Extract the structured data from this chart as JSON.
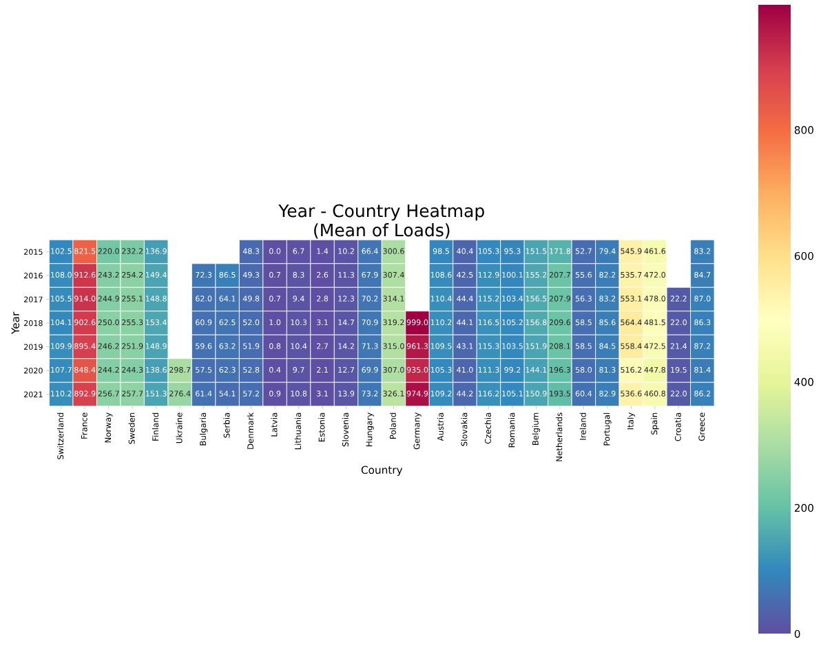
{
  "chart_data": {
    "type": "heatmap",
    "title": "Year - Country Heatmap\n(Mean of Loads)",
    "xlabel": "Country",
    "ylabel": "Year",
    "categories": [
      "Switzerland",
      "France",
      "Norway",
      "Sweden",
      "Finland",
      "Ukraine",
      "Bulgaria",
      "Serbia",
      "Denmark",
      "Latvia",
      "Lithuania",
      "Estonia",
      "Slovenia",
      "Hungary",
      "Poland",
      "Germany",
      "Austria",
      "Slovakia",
      "Czechia",
      "Romania",
      "Belgium",
      "Netherlands",
      "Ireland",
      "Portugal",
      "Italy",
      "Spain",
      "Croatia",
      "Greece"
    ],
    "y_categories": [
      "2015",
      "2016",
      "2017",
      "2018",
      "2019",
      "2020",
      "2021"
    ],
    "cells": [
      [
        102.5,
        821.5,
        220.0,
        232.2,
        136.9,
        null,
        null,
        null,
        48.3,
        0.0,
        6.7,
        1.4,
        10.2,
        66.4,
        300.6,
        null,
        98.5,
        40.4,
        105.3,
        95.3,
        151.5,
        171.8,
        52.7,
        79.4,
        545.9,
        461.6,
        null,
        83.2
      ],
      [
        108.0,
        912.6,
        243.2,
        254.2,
        149.4,
        null,
        72.3,
        86.5,
        49.3,
        0.7,
        8.3,
        2.6,
        11.3,
        67.9,
        307.4,
        null,
        108.6,
        42.5,
        112.9,
        100.1,
        155.2,
        207.7,
        55.6,
        82.2,
        535.7,
        472.0,
        null,
        84.7
      ],
      [
        105.5,
        914.0,
        244.9,
        255.1,
        148.8,
        null,
        62.0,
        64.1,
        49.8,
        0.7,
        9.4,
        2.8,
        12.3,
        70.2,
        314.1,
        null,
        110.4,
        44.4,
        115.2,
        103.4,
        156.5,
        207.9,
        56.3,
        83.2,
        553.1,
        478.0,
        22.2,
        87.0
      ],
      [
        104.1,
        902.6,
        250.0,
        255.3,
        153.4,
        null,
        60.9,
        62.5,
        52.0,
        1.0,
        10.3,
        3.1,
        14.7,
        70.9,
        319.2,
        999.0,
        110.2,
        44.1,
        116.5,
        105.2,
        156.8,
        209.6,
        58.5,
        85.6,
        564.4,
        481.5,
        22.0,
        86.3
      ],
      [
        109.9,
        895.4,
        246.2,
        251.9,
        148.9,
        null,
        59.6,
        63.2,
        51.9,
        0.8,
        10.4,
        2.7,
        14.2,
        71.3,
        315.0,
        961.3,
        109.5,
        43.1,
        115.3,
        103.5,
        151.9,
        208.1,
        58.5,
        84.5,
        558.4,
        472.5,
        21.4,
        87.2
      ],
      [
        107.7,
        848.4,
        244.2,
        244.3,
        138.6,
        298.7,
        57.5,
        62.3,
        52.8,
        0.4,
        9.7,
        2.1,
        12.7,
        69.9,
        307.0,
        935.0,
        105.3,
        41.0,
        111.3,
        99.2,
        144.1,
        196.3,
        58.0,
        81.3,
        516.2,
        447.8,
        19.5,
        81.4
      ],
      [
        110.2,
        892.9,
        256.7,
        257.7,
        151.3,
        276.4,
        61.4,
        54.1,
        57.2,
        0.9,
        10.8,
        3.1,
        13.9,
        73.2,
        326.1,
        974.9,
        109.2,
        44.2,
        116.2,
        105.1,
        150.9,
        193.5,
        60.4,
        82.9,
        536.6,
        460.8,
        22.0,
        86.2
      ]
    ],
    "cell_labels": [
      [
        "102.5",
        "821.5",
        "220.0",
        "232.2",
        "136.9",
        null,
        null,
        null,
        "48.3",
        "0.0",
        "6.7",
        "1.4",
        "10.2",
        "66.4",
        "300.6",
        null,
        "98.5",
        "40.4",
        "105.3",
        "95.3",
        "151.5",
        "171.8",
        "52.7",
        "79.4",
        "545.9",
        "461.6",
        null,
        "83.2"
      ],
      [
        "108.0",
        "912.6",
        "243.2",
        "254.2",
        "149.4",
        null,
        "72.3",
        "86.5",
        "49.3",
        "0.7",
        "8.3",
        "2.6",
        "11.3",
        "67.9",
        "307.4",
        null,
        "108.6",
        "42.5",
        "112.9",
        "100.1",
        "155.2",
        "207.7",
        "55.6",
        "82.2",
        "535.7",
        "472.0",
        null,
        "84.7"
      ],
      [
        "105.5",
        "914.0",
        "244.9",
        "255.1",
        "148.8",
        null,
        "62.0",
        "64.1",
        "49.8",
        "0.7",
        "9.4",
        "2.8",
        "12.3",
        "70.2",
        "314.1",
        null,
        "110.4",
        "44.4",
        "115.2",
        "103.4",
        "156.5",
        "207.9",
        "56.3",
        "83.2",
        "553.1",
        "478.0",
        "22.2",
        "87.0"
      ],
      [
        "104.1",
        "902.6",
        "250.0",
        "255.3",
        "153.4",
        null,
        "60.9",
        "62.5",
        "52.0",
        "1.0",
        "10.3",
        "3.1",
        "14.7",
        "70.9",
        "319.2",
        "999.0",
        "110.2",
        "44.1",
        "116.5",
        "105.2",
        "156.8",
        "209.6",
        "58.5",
        "85.6",
        "564.4",
        "481.5",
        "22.0",
        "86.3"
      ],
      [
        "109.9",
        "895.4",
        "246.2",
        "251.9",
        "148.9",
        null,
        "59.6",
        "63.2",
        "51.9",
        "0.8",
        "10.4",
        "2.7",
        "14.2",
        "71.3",
        "315.0",
        "961.3",
        "109.5",
        "43.1",
        "115.3",
        "103.5",
        "151.9",
        "208.1",
        "58.5",
        "84.5",
        "558.4",
        "472.5",
        "21.4",
        "87.2"
      ],
      [
        "107.7",
        "848.4",
        "244.2",
        "244.3",
        "138.6",
        "298.7",
        "57.5",
        "62.3",
        "52.8",
        "0.4",
        "9.7",
        "2.1",
        "12.7",
        "69.9",
        "307.0",
        "935.0",
        "105.3",
        "41.0",
        "111.3",
        "99.2",
        "144.1",
        "196.3",
        "58.0",
        "81.3",
        "516.2",
        "447.8",
        "19.5",
        "81.4"
      ],
      [
        "110.2",
        "892.9",
        "256.7",
        "257.7",
        "151.3",
        "276.4",
        "61.4",
        "54.1",
        "57.2",
        "0.9",
        "10.8",
        "3.1",
        "13.9",
        "73.2",
        "326.1",
        "974.9",
        "109.2",
        "44.2",
        "116.2",
        "105.1",
        "150.9",
        "193.5",
        "60.4",
        "82.9",
        "536.6",
        "460.8",
        "22.0",
        "86.2"
      ]
    ],
    "clim": [
      0,
      999.0
    ],
    "cticks": [
      0,
      200,
      400,
      600,
      800
    ],
    "data_labels": true
  }
}
